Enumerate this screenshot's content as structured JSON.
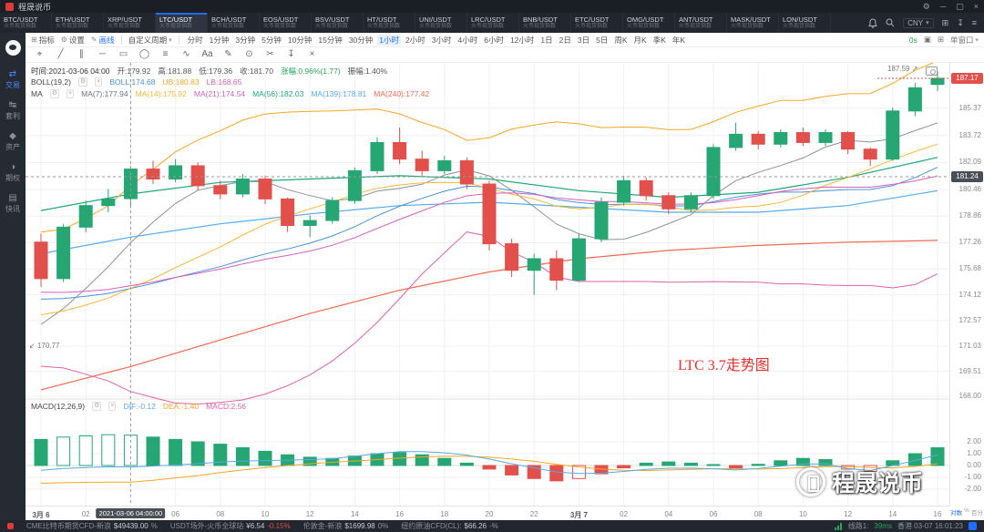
{
  "window": {
    "title": "程晟说币"
  },
  "ticker_tabs": {
    "active": "LTC/USDT",
    "subtitle": "火币现货指数",
    "items": [
      "BTC/USDT",
      "ETH/USDT",
      "XRP/USDT",
      "LTC/USDT",
      "BCH/USDT",
      "EOS/USDT",
      "BSV/USDT",
      "HT/USDT",
      "UNI/USDT",
      "LRC/USDT",
      "BNB/USDT",
      "ETC/USDT",
      "OMG/USDT",
      "ANT/USDT",
      "MASK/USDT",
      "LON/USDT"
    ],
    "currency": "CNY"
  },
  "sidebar": {
    "items": [
      {
        "label": "交易",
        "icon": "⇄",
        "active": true
      },
      {
        "label": "套利",
        "icon": "↹",
        "active": false
      },
      {
        "label": "资产",
        "icon": "◆",
        "active": false
      },
      {
        "label": "期权",
        "icon": "◑",
        "active": false
      },
      {
        "label": "快讯",
        "icon": "▤",
        "active": false
      }
    ]
  },
  "toolbar": {
    "indicator": "指标",
    "settings": "设置",
    "draw": "画线",
    "period_preset": "自定义周期",
    "timeframes": [
      "分时",
      "1分钟",
      "3分钟",
      "5分钟",
      "10分钟",
      "15分钟",
      "30分钟",
      "1小时",
      "2小时",
      "3小时",
      "4小时",
      "6小时",
      "12小时",
      "1日",
      "2日",
      "3日",
      "5日",
      "周K",
      "月K",
      "季K",
      "年K"
    ],
    "active_timeframe": "1小时",
    "latency": "0s",
    "window_mode": "单窗口",
    "draw_tools": [
      {
        "glyph": "⌖",
        "name": "crosshair-tool"
      },
      {
        "glyph": "╱",
        "name": "trend-line-tool"
      },
      {
        "glyph": "∥",
        "name": "channel-tool"
      },
      {
        "glyph": "─",
        "name": "horizontal-line-tool"
      },
      {
        "glyph": "▭",
        "name": "rectangle-tool"
      },
      {
        "glyph": "◯",
        "name": "ellipse-tool"
      },
      {
        "glyph": "≡",
        "name": "fib-retracement-tool"
      },
      {
        "glyph": "∿",
        "name": "wave-tool"
      },
      {
        "glyph": "Aa",
        "name": "text-tool"
      },
      {
        "glyph": "✎",
        "name": "pencil-tool"
      },
      {
        "glyph": "⊙",
        "name": "point-marker-tool"
      },
      {
        "glyph": "✂",
        "name": "measure-tool"
      },
      {
        "glyph": "↧",
        "name": "export-tool"
      },
      {
        "glyph": "×",
        "name": "clear-drawings-tool"
      }
    ]
  },
  "legend": {
    "ohlc": {
      "time": "时间:2021-03-06 04:00",
      "open": "开:179.92",
      "high": "高:181.88",
      "low": "低:179.36",
      "close": "收:181.70",
      "change": "涨幅:0.96%(1.77)",
      "amplitude": "振幅:1.40%"
    },
    "boll": {
      "name": "BOLL(19,2)",
      "values": [
        {
          "label": "BOLL:174.68",
          "color": "#4a90d9"
        },
        {
          "label": "UB:180.83",
          "color": "#f5a623"
        },
        {
          "label": "LB:168.65",
          "color": "#e060a8"
        }
      ]
    },
    "ma": {
      "name": "MA",
      "values": [
        {
          "label": "MA(7):177.94",
          "color": "#6b7280"
        },
        {
          "label": "MA(14):175.92",
          "color": "#f7b731"
        },
        {
          "label": "MA(21):174.54",
          "color": "#d45fc0"
        },
        {
          "label": "MA(56):182.03",
          "color": "#1fa77c"
        },
        {
          "label": "MA(139):178.81",
          "color": "#58aae8"
        },
        {
          "label": "MA(240):177.42",
          "color": "#f06a50"
        }
      ]
    },
    "macd": {
      "name": "MACD(12,26,9)",
      "values": [
        {
          "label": "DIF:-0.12",
          "color": "#5aa9e6"
        },
        {
          "label": "DEA:-1.40",
          "color": "#f5a623"
        },
        {
          "label": "MACD:2.56",
          "color": "#e060a8"
        }
      ]
    }
  },
  "chart_data": {
    "type": "candlestick",
    "symbol": "LTC/USDT",
    "interval": "1小时",
    "price_axis": {
      "min": 167.9,
      "max": 188.1,
      "scale": "log",
      "ticks": [
        185.37,
        183.72,
        182.09,
        180.46,
        178.86,
        177.26,
        175.68,
        174.12,
        172.57,
        171.03,
        169.51,
        168.0
      ],
      "last_price": 187.17,
      "crosshair_price": 181.24
    },
    "x_axis": {
      "labels": [
        {
          "i": 0,
          "t": "3月 6"
        },
        {
          "i": 2,
          "t": "02"
        },
        {
          "i": 6,
          "t": "06"
        },
        {
          "i": 8,
          "t": "08"
        },
        {
          "i": 10,
          "t": "10"
        },
        {
          "i": 12,
          "t": "12"
        },
        {
          "i": 14,
          "t": "14"
        },
        {
          "i": 16,
          "t": "16"
        },
        {
          "i": 18,
          "t": "18"
        },
        {
          "i": 20,
          "t": "20"
        },
        {
          "i": 22,
          "t": "22"
        },
        {
          "i": 24,
          "t": "3月 7"
        },
        {
          "i": 26,
          "t": "02"
        },
        {
          "i": 28,
          "t": "04"
        },
        {
          "i": 30,
          "t": "06"
        },
        {
          "i": 32,
          "t": "08"
        },
        {
          "i": 34,
          "t": "10"
        },
        {
          "i": 36,
          "t": "12"
        },
        {
          "i": 38,
          "t": "14"
        },
        {
          "i": 40,
          "t": "16"
        }
      ],
      "crosshair": {
        "i": 4,
        "label": "2021-03-06 04:00:00"
      }
    },
    "axis_corner": {
      "log": "对数",
      "pct_symbol": "%",
      "percent": "百分"
    },
    "annotations": {
      "high": "187.59",
      "low": "170.77",
      "note": "LTC 3.7走势图"
    },
    "candles": [
      [
        177.3,
        177.8,
        174.6,
        175.1
      ],
      [
        175.1,
        178.4,
        174.9,
        178.2
      ],
      [
        178.2,
        179.8,
        177.9,
        179.5
      ],
      [
        179.5,
        180.5,
        179.1,
        179.9
      ],
      [
        179.92,
        181.88,
        179.36,
        181.7
      ],
      [
        181.7,
        182.2,
        180.8,
        181.1
      ],
      [
        181.1,
        182.3,
        180.9,
        181.9
      ],
      [
        181.9,
        182.1,
        180.4,
        180.7
      ],
      [
        180.7,
        181.0,
        179.9,
        180.2
      ],
      [
        180.2,
        181.4,
        180.0,
        181.1
      ],
      [
        181.1,
        181.3,
        179.6,
        179.9
      ],
      [
        179.9,
        180.0,
        177.9,
        178.3
      ],
      [
        178.3,
        178.9,
        177.6,
        178.6
      ],
      [
        178.6,
        180.0,
        178.4,
        179.8
      ],
      [
        179.8,
        181.8,
        179.6,
        181.6
      ],
      [
        181.6,
        183.6,
        181.4,
        183.3
      ],
      [
        183.3,
        184.2,
        182.0,
        182.3
      ],
      [
        182.3,
        182.8,
        181.3,
        181.6
      ],
      [
        181.6,
        182.5,
        181.4,
        182.2
      ],
      [
        182.2,
        182.4,
        180.5,
        180.8
      ],
      [
        180.8,
        181.0,
        176.8,
        177.2
      ],
      [
        177.2,
        177.5,
        175.2,
        175.6
      ],
      [
        175.6,
        176.6,
        174.12,
        176.3
      ],
      [
        176.3,
        176.8,
        174.4,
        175.0
      ],
      [
        175.0,
        177.8,
        174.9,
        177.5
      ],
      [
        177.5,
        180.0,
        177.3,
        179.7
      ],
      [
        179.7,
        181.3,
        179.5,
        181.0
      ],
      [
        181.0,
        181.2,
        179.8,
        180.1
      ],
      [
        180.1,
        180.3,
        179.0,
        179.3
      ],
      [
        179.3,
        180.3,
        179.1,
        180.1
      ],
      [
        180.1,
        183.2,
        179.9,
        183.0
      ],
      [
        183.0,
        184.5,
        182.8,
        183.8
      ],
      [
        183.8,
        184.0,
        182.9,
        183.2
      ],
      [
        183.2,
        184.1,
        183.0,
        183.9
      ],
      [
        183.9,
        184.2,
        183.1,
        183.3
      ],
      [
        183.3,
        184.1,
        183.1,
        183.9
      ],
      [
        183.9,
        184.0,
        182.6,
        182.9
      ],
      [
        182.9,
        183.0,
        181.9,
        182.3
      ],
      [
        182.3,
        185.4,
        182.2,
        185.2
      ],
      [
        185.2,
        186.9,
        184.9,
        186.6
      ],
      [
        186.8,
        187.59,
        186.4,
        187.17
      ]
    ],
    "warmup_closes": [
      183.5,
      183.0,
      182.5,
      182.0,
      181.5,
      181.0,
      180.5,
      180.0,
      179.5,
      179.0,
      178.5,
      178.0,
      177.5,
      177.0,
      176.5,
      176.0,
      175.5,
      175.0,
      174.5,
      174.0,
      173.5,
      173.0,
      172.5,
      172.0,
      171.5,
      171.0,
      170.77,
      171.5,
      172.5,
      174.0
    ],
    "overlays": {
      "boll": {
        "window": 19,
        "mult": 2,
        "colors": {
          "mid": "#4a90d9",
          "ub": "#f5a623",
          "lb": "#e060a8"
        }
      },
      "fast_mas": [
        {
          "name": "MA(7)",
          "window": 7,
          "color": "#8a919c"
        },
        {
          "name": "MA(14)",
          "window": 14,
          "color": "#f7b731"
        },
        {
          "name": "MA(21)",
          "window": 21,
          "color": "#d45fc0"
        }
      ],
      "slow_mas": [
        {
          "name": "MA(56)",
          "color": "#1fa77c",
          "points": [
            [
              0,
              179.2
            ],
            [
              4,
              180.2
            ],
            [
              8,
              180.9
            ],
            [
              12,
              181.1
            ],
            [
              16,
              181.3
            ],
            [
              20,
              181.1
            ],
            [
              24,
              180.4
            ],
            [
              28,
              180.0
            ],
            [
              32,
              180.3
            ],
            [
              36,
              181.2
            ],
            [
              40,
              182.4
            ]
          ]
        },
        {
          "name": "MA(139)",
          "color": "#58aae8",
          "points": [
            [
              0,
              176.6
            ],
            [
              4,
              177.6
            ],
            [
              8,
              178.4
            ],
            [
              12,
              179.0
            ],
            [
              16,
              179.5
            ],
            [
              20,
              179.7
            ],
            [
              24,
              179.4
            ],
            [
              28,
              179.1
            ],
            [
              32,
              179.1
            ],
            [
              36,
              179.5
            ],
            [
              40,
              180.4
            ]
          ]
        },
        {
          "name": "MA(240)",
          "color": "#f06a50",
          "points": [
            [
              0,
              168.4
            ],
            [
              4,
              169.8
            ],
            [
              8,
              171.4
            ],
            [
              12,
              173.0
            ],
            [
              16,
              174.4
            ],
            [
              20,
              175.5
            ],
            [
              24,
              176.3
            ],
            [
              28,
              176.8
            ],
            [
              32,
              177.1
            ],
            [
              36,
              177.3
            ],
            [
              40,
              177.4
            ]
          ]
        }
      ]
    },
    "macd": {
      "axis_ticks": [
        2.0,
        1.0,
        0.0,
        -1.0,
        -2.0
      ],
      "histogram": [
        2.2,
        2.4,
        2.5,
        2.6,
        2.56,
        2.4,
        2.2,
        2.0,
        1.8,
        1.5,
        1.2,
        0.9,
        0.7,
        0.6,
        0.8,
        1.0,
        1.1,
        0.9,
        0.6,
        0.2,
        -0.3,
        -0.8,
        -1.1,
        -1.3,
        -1.1,
        -0.7,
        -0.2,
        0.2,
        0.3,
        0.2,
        0.0,
        -0.2,
        0.1,
        0.4,
        0.6,
        0.5,
        -0.3,
        -0.5,
        0.4,
        1.0,
        1.5
      ],
      "dea": [
        -1.5,
        -1.45,
        -1.42,
        -1.41,
        -1.4,
        -1.25,
        -1.05,
        -0.85,
        -0.6,
        -0.38,
        -0.18,
        0.0,
        0.15,
        0.28,
        0.38,
        0.5,
        0.62,
        0.72,
        0.78,
        0.78,
        0.7,
        0.55,
        0.35,
        0.1,
        -0.12,
        -0.3,
        -0.4,
        -0.42,
        -0.38,
        -0.32,
        -0.28,
        -0.28,
        -0.3,
        -0.26,
        -0.18,
        -0.1,
        -0.1,
        -0.18,
        -0.2,
        -0.08,
        0.15
      ],
      "hollow_bars": [
        1,
        2,
        3,
        4,
        24,
        36,
        37
      ],
      "colors": {
        "up": "#26a673",
        "down": "#e2504b",
        "dif": "#5aa9e6",
        "dea": "#f5a623"
      }
    },
    "colors": {
      "up": "#26a673",
      "down": "#e2504b",
      "grid": "#f0f0f0",
      "crosshair": "#9a9a9a",
      "accent": "#1e6fff"
    }
  },
  "status_bar": {
    "items": [
      {
        "label": "CME比特币期货CFD-新浪",
        "value": "$49439.00",
        "change": "%",
        "dir": "flat"
      },
      {
        "label": "USDT场外-火币全球站",
        "value": "¥6.54",
        "change": "-0.15%",
        "dir": "down"
      },
      {
        "label": "伦敦金-新浪",
        "value": "$1699.98",
        "change": "0%",
        "dir": "flat"
      },
      {
        "label": "纽约原油CFD(CL):",
        "value": "$66.26",
        "change": "-%",
        "dir": "flat"
      }
    ],
    "line_label": "线路1:",
    "latency": "39ms",
    "region_time": "香港 03-07 16:01:23"
  },
  "watermark": {
    "text": "程晟说币"
  }
}
